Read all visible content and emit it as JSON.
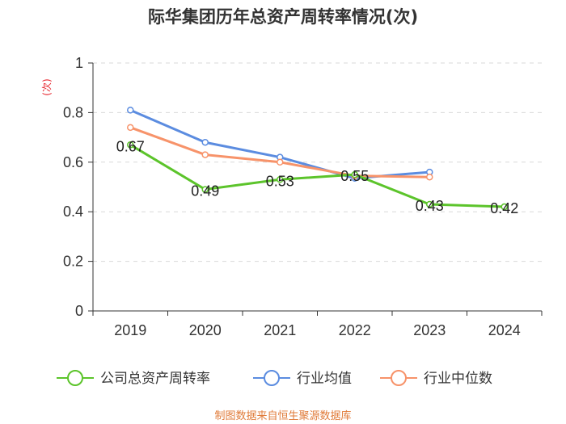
{
  "chart_data": {
    "type": "line",
    "title": "际华集团历年总资产周转率情况(次)",
    "ylabel": "(次)",
    "xlabel": "",
    "categories": [
      "2019",
      "2020",
      "2021",
      "2022",
      "2023",
      "2024"
    ],
    "ylim": [
      0,
      1
    ],
    "yticks": [
      "0",
      "0.2",
      "0.4",
      "0.6",
      "0.8",
      "1"
    ],
    "grid": true,
    "series": [
      {
        "name": "公司总资产周转率",
        "color": "#5cc42b",
        "values": [
          0.67,
          0.49,
          0.53,
          0.55,
          0.43,
          0.42
        ],
        "labels": [
          "0.67",
          "0.49",
          "0.53",
          "0.55",
          "0.43",
          "0.42"
        ]
      },
      {
        "name": "行业均值",
        "color": "#5b8ce0",
        "values": [
          0.81,
          0.68,
          0.62,
          0.535,
          0.56,
          null
        ]
      },
      {
        "name": "行业中位数",
        "color": "#f7936a",
        "values": [
          0.74,
          0.63,
          0.6,
          0.545,
          0.54,
          null
        ]
      }
    ],
    "legend_position": "bottom"
  },
  "source": "制图数据来自恒生聚源数据库"
}
